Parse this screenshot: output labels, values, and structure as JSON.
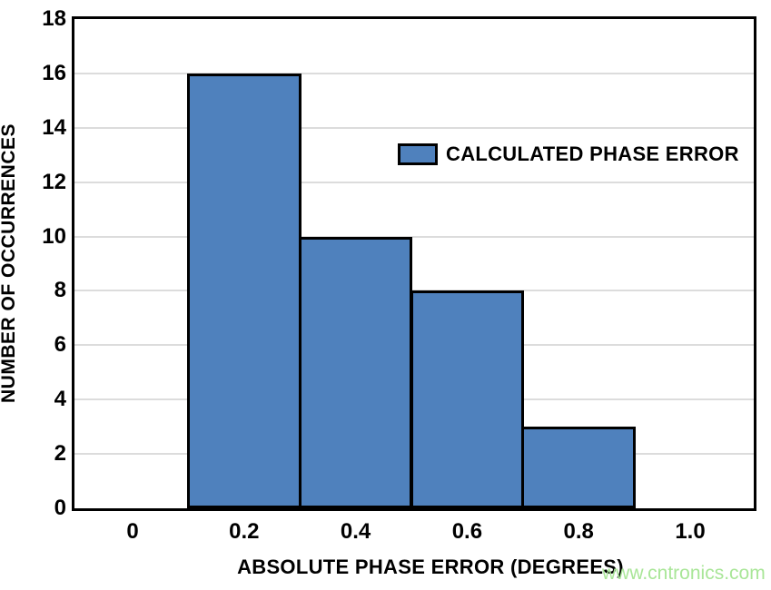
{
  "chart_data": {
    "type": "bar",
    "subtype": "histogram",
    "title": "",
    "xlabel": "ABSOLUTE PHASE ERROR (DEGREES)",
    "ylabel": "NUMBER OF OCCURRENCES",
    "bins": [
      {
        "x0": 0.1,
        "x1": 0.3,
        "count": 16
      },
      {
        "x0": 0.3,
        "x1": 0.5,
        "count": 10
      },
      {
        "x0": 0.5,
        "x1": 0.7,
        "count": 8
      },
      {
        "x0": 0.7,
        "x1": 0.9,
        "count": 3
      }
    ],
    "series": [
      {
        "name": "CALCULATED PHASE ERROR",
        "color": "#4f81bd"
      }
    ],
    "x_ticks": [
      0,
      0.2,
      0.4,
      0.6,
      0.8,
      1.0
    ],
    "x_tick_labels": [
      "0",
      "0.2",
      "0.4",
      "0.6",
      "0.8",
      "1.0"
    ],
    "y_ticks": [
      0,
      2,
      4,
      6,
      8,
      10,
      12,
      14,
      16,
      18
    ],
    "y_tick_labels": [
      "0",
      "2",
      "4",
      "6",
      "8",
      "10",
      "12",
      "14",
      "16",
      "18"
    ],
    "xlim": [
      -0.109,
      1.119
    ],
    "ylim": [
      0,
      18
    ],
    "grid": "horizontal-only",
    "legend_position": "upper-center-right",
    "legend_label": "CALCULATED PHASE ERROR"
  },
  "colors": {
    "bar_fill": "#4f81bd",
    "bar_border": "#000000",
    "grid_line": "#dcdcdc",
    "axis_frame": "#000000",
    "text": "#000000",
    "watermark": "#a9e698",
    "background": "#ffffff"
  },
  "watermark": {
    "text": "www.cntronics.com"
  }
}
